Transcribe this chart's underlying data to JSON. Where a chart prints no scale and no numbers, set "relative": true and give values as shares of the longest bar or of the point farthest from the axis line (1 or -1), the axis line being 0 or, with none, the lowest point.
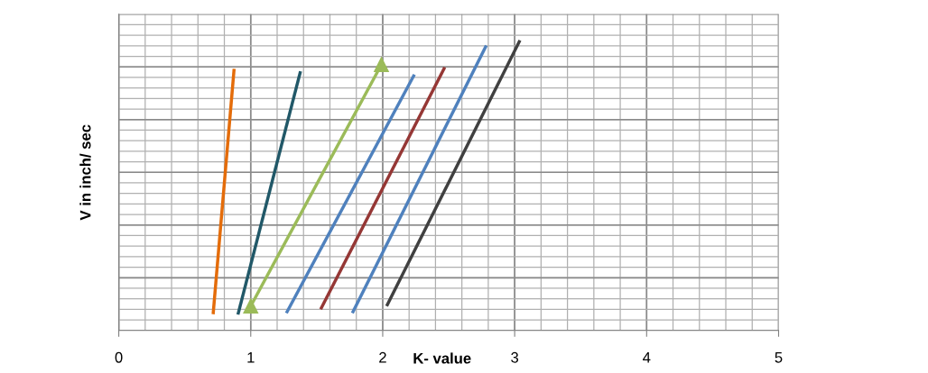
{
  "chart_data": {
    "type": "line",
    "xlabel": "K- value",
    "ylabel": "V in inch/ sec",
    "relative": true,
    "xlim": [
      0,
      5
    ],
    "xticks": [
      0,
      1,
      2,
      3,
      4,
      5
    ],
    "grid": true,
    "marker": "none",
    "line_style": "solid",
    "series": [
      {
        "color": "#e46c0a",
        "x": [
          0.715,
          0.874
        ],
        "values": [
          0.056,
          0.902
        ]
      },
      {
        "color": "#215868",
        "x": [
          0.903,
          1.377
        ],
        "values": [
          0.055,
          0.893
        ]
      },
      {
        "color": "#9bbb59",
        "x": [
          1.0,
          1.99
        ],
        "values": [
          0.084,
          0.916
        ],
        "marker": "triangle"
      },
      {
        "color": "#4f81bd",
        "x": [
          1.27,
          2.24
        ],
        "values": [
          0.06,
          0.882
        ]
      },
      {
        "color": "#953735",
        "x": [
          1.53,
          2.47
        ],
        "values": [
          0.073,
          0.907
        ]
      },
      {
        "color": "#4f81bd",
        "x": [
          1.77,
          2.785
        ],
        "values": [
          0.06,
          0.982
        ]
      },
      {
        "color": "#404040",
        "x": [
          2.03,
          3.04
        ],
        "values": [
          0.084,
          1.0
        ]
      }
    ]
  }
}
